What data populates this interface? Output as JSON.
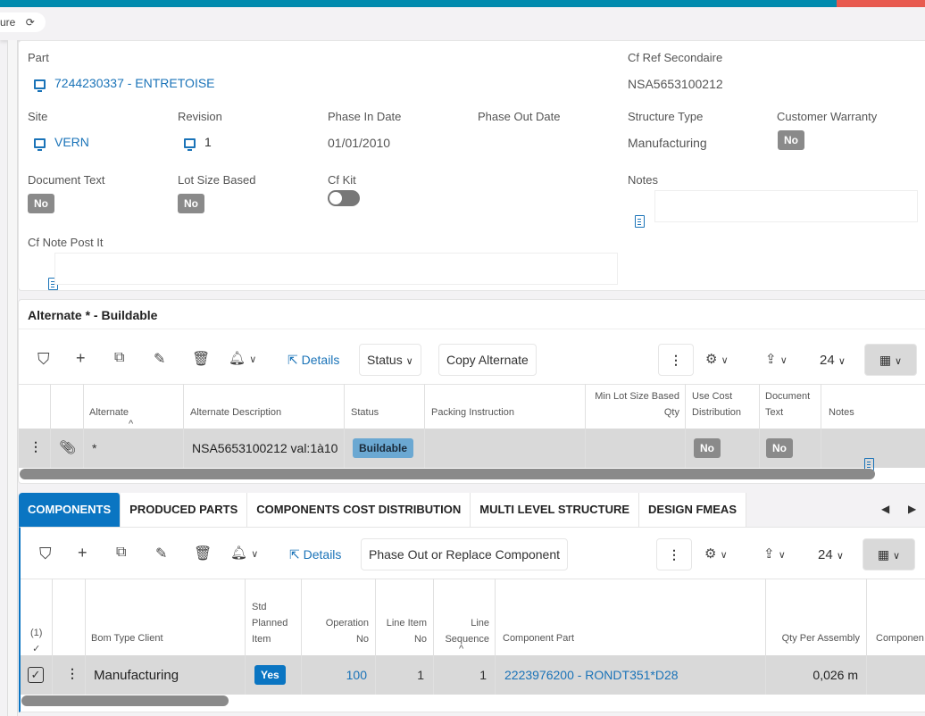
{
  "header": {
    "breadcrumb_fragment": "ure",
    "refresh_icon": "refresh-icon",
    "accent": "#008bae"
  },
  "form": {
    "part": {
      "label": "Part",
      "value": "7244230337 - ENTRETOISE"
    },
    "cf_ref_secondaire": {
      "label": "Cf Ref Secondaire",
      "value": "NSA5653100212"
    },
    "site": {
      "label": "Site",
      "value": "VERN"
    },
    "revision": {
      "label": "Revision",
      "value": "1"
    },
    "phase_in_date": {
      "label": "Phase In Date",
      "value": "01/01/2010"
    },
    "phase_out_date": {
      "label": "Phase Out Date",
      "value": ""
    },
    "structure_type": {
      "label": "Structure Type",
      "value": "Manufacturing"
    },
    "customer_warranty": {
      "label": "Customer Warranty",
      "value": "No"
    },
    "document_text": {
      "label": "Document Text",
      "value": "No"
    },
    "lot_size_based": {
      "label": "Lot Size Based",
      "value": "No"
    },
    "cf_kit": {
      "label": "Cf Kit",
      "value": false
    },
    "notes": {
      "label": "Notes"
    },
    "cf_note_post_it": {
      "label": "Cf Note Post It"
    }
  },
  "alternate": {
    "title": "Alternate * - Buildable",
    "toolbar": {
      "details": "Details",
      "status": "Status",
      "copy": "Copy Alternate",
      "page_size": "24"
    },
    "columns": [
      "Alternate",
      "Alternate Description",
      "Status",
      "Packing Instruction",
      "Min Lot Size Based Qty",
      "Use Cost Distribution",
      "Document Text",
      "Notes"
    ],
    "rows": [
      {
        "alternate": "*",
        "description": "NSA5653100212 val:1à10",
        "status": "Buildable",
        "packing": "",
        "min_lot": "",
        "use_cost": "No",
        "document_text": "No"
      }
    ]
  },
  "tabs": [
    "COMPONENTS",
    "PRODUCED PARTS",
    "COMPONENTS COST DISTRIBUTION",
    "MULTI LEVEL STRUCTURE",
    "DESIGN FMEAS"
  ],
  "components": {
    "toolbar": {
      "details": "Details",
      "phase_out": "Phase Out or Replace Component",
      "page_size": "24"
    },
    "selected_count": "(1)",
    "columns": [
      "Bom Type Client",
      "Std Planned Item",
      "Operation No",
      "Line Item No",
      "Line Sequence",
      "Component Part",
      "Qty Per Assembly",
      "Componen"
    ],
    "rows": [
      {
        "bom_type": "Manufacturing",
        "std_planned": "Yes",
        "operation_no": "100",
        "line_item_no": "1",
        "line_sequence": "1",
        "component_part": "2223976200 - RONDT351*D28",
        "qty": "0,026 m"
      }
    ]
  }
}
